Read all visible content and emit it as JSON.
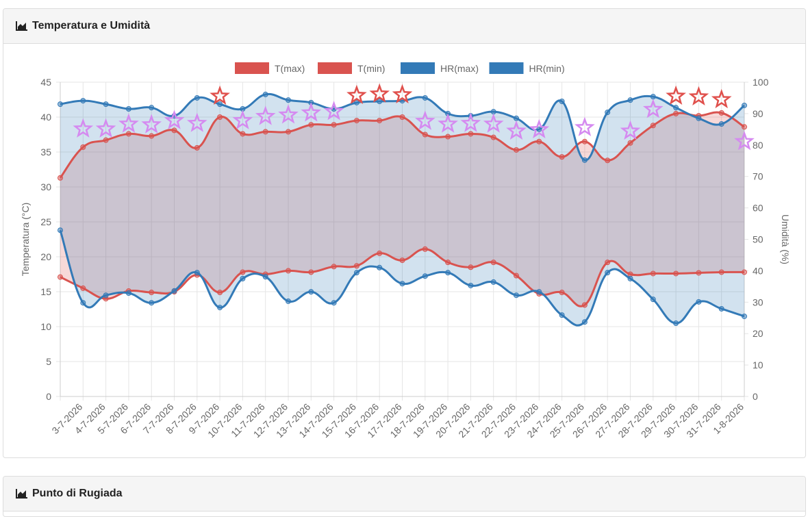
{
  "header": {
    "title": "Temperatura e Umidità"
  },
  "next_card": {
    "title": "Punto di Rugiada"
  },
  "chart_data": {
    "type": "line",
    "categories": [
      null,
      "3-7-2026",
      "4-7-2026",
      "5-7-2026",
      "6-7-2026",
      "7-7-2026",
      "8-7-2026",
      "9-7-2026",
      "10-7-2026",
      "11-7-2026",
      "12-7-2026",
      "13-7-2026",
      "14-7-2026",
      "15-7-2026",
      "16-7-2026",
      "17-7-2026",
      "18-7-2026",
      "19-7-2026",
      "20-7-2026",
      "21-7-2026",
      "22-7-2026",
      "23-7-2026",
      "24-7-2026",
      "25-7-2026",
      "26-7-2026",
      "27-7-2026",
      "28-7-2026",
      "29-7-2026",
      "30-7-2026",
      "31-7-2026",
      "1-8-2026"
    ],
    "series": [
      {
        "name": "T(max)",
        "color": "#d9534f",
        "values": [
          31.3,
          35.7,
          36.7,
          37.6,
          37.3,
          38.1,
          35.6,
          40.0,
          37.6,
          37.9,
          37.9,
          38.9,
          38.9,
          39.5,
          39.5,
          40.0,
          37.5,
          37.2,
          37.6,
          37.1,
          35.3,
          36.5,
          34.3,
          36.5,
          33.8,
          36.3,
          38.8,
          40.5,
          40.2,
          40.6,
          38.6
        ]
      },
      {
        "name": "T(min)",
        "color": "#d9534f",
        "values": [
          17.1,
          15.5,
          14.0,
          15.1,
          14.9,
          15.0,
          17.4,
          14.9,
          17.8,
          17.5,
          18.0,
          17.8,
          18.6,
          18.7,
          20.5,
          19.5,
          21.1,
          19.2,
          18.5,
          19.2,
          17.3,
          14.7,
          14.9,
          13.1,
          19.2,
          17.5,
          17.6,
          17.6,
          17.7,
          17.8,
          17.8
        ]
      },
      {
        "name": "HR(max)",
        "color": "#337ab7",
        "axis": "y2",
        "values": [
          93.0,
          94.1,
          93.0,
          91.5,
          91.9,
          89.3,
          95.0,
          93.0,
          91.5,
          96.1,
          94.3,
          93.5,
          91.5,
          93.5,
          93.9,
          94.1,
          95.0,
          90.0,
          89.3,
          90.6,
          88.5,
          85.0,
          93.9,
          75.2,
          90.4,
          94.3,
          95.4,
          91.9,
          88.5,
          86.7,
          92.6
        ]
      },
      {
        "name": "HR(min)",
        "color": "#337ab7",
        "axis": "y2",
        "values": [
          52.9,
          29.8,
          32.2,
          32.9,
          29.8,
          33.6,
          39.4,
          28.3,
          37.5,
          38.1,
          30.3,
          33.3,
          29.8,
          39.4,
          41.0,
          35.9,
          38.3,
          39.4,
          35.3,
          36.4,
          32.2,
          33.3,
          25.9,
          23.7,
          39.4,
          37.5,
          30.9,
          23.3,
          30.1,
          27.9,
          25.5
        ]
      }
    ],
    "stars": {
      "values": [
        null,
        38.3,
        38.3,
        39.0,
        38.9,
        39.5,
        39.1,
        43.0,
        39.5,
        40.1,
        40.3,
        40.6,
        40.8,
        43.1,
        43.3,
        43.2,
        39.4,
        39.0,
        39.1,
        39.0,
        38.0,
        38.2,
        null,
        38.5,
        null,
        38.0,
        41.1,
        43.0,
        42.9,
        42.5,
        36.5
      ],
      "colors": [
        null,
        "#d58af0",
        "#d58af0",
        "#d58af0",
        "#d58af0",
        "#d58af0",
        "#d58af0",
        "#e0504c",
        "#d58af0",
        "#d58af0",
        "#d58af0",
        "#d58af0",
        "#d58af0",
        "#e0504c",
        "#e0504c",
        "#e0504c",
        "#d58af0",
        "#d58af0",
        "#d58af0",
        "#d58af0",
        "#d58af0",
        "#d58af0",
        null,
        "#d58af0",
        null,
        "#d58af0",
        "#d58af0",
        "#e0504c",
        "#e0504c",
        "#e0504c",
        "#d58af0"
      ]
    },
    "fill_between": [
      [
        0,
        1
      ],
      [
        2,
        3
      ]
    ],
    "ylabel": "Temperatura (°C)",
    "y2label": "Umidità (%)",
    "ylim": [
      0,
      45
    ],
    "yticks": [
      0,
      5,
      10,
      15,
      20,
      25,
      30,
      35,
      40,
      45
    ],
    "y2lim": [
      0,
      100
    ],
    "y2ticks": [
      0,
      10,
      20,
      30,
      40,
      50,
      60,
      70,
      80,
      90,
      100
    ],
    "grid": true,
    "legend": "top"
  }
}
